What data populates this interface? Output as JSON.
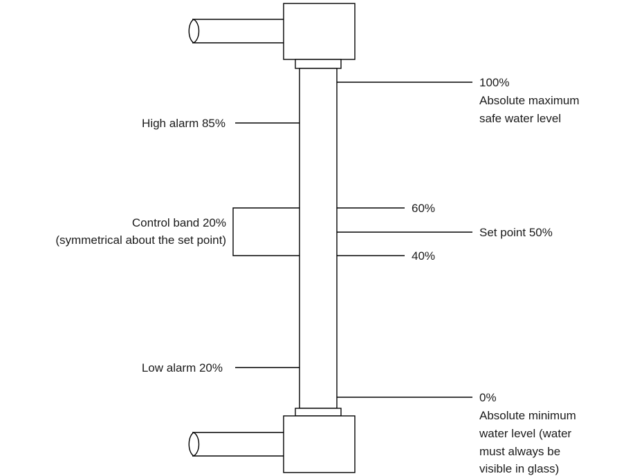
{
  "labels": {
    "max_pct": "100%",
    "max_desc_1": "Absolute maximum",
    "max_desc_2": "safe water level",
    "high_alarm": "High alarm 85%",
    "band_1": "Control band 20%",
    "band_2": "(symmetrical about the set point)",
    "band_upper": "60%",
    "set_point": "Set point 50%",
    "band_lower": "40%",
    "low_alarm": "Low alarm 20%",
    "min_pct": "0%",
    "min_desc_1": "Absolute minimum",
    "min_desc_2": "water level (water",
    "min_desc_3": "must always be",
    "min_desc_4": "visible in glass)"
  }
}
